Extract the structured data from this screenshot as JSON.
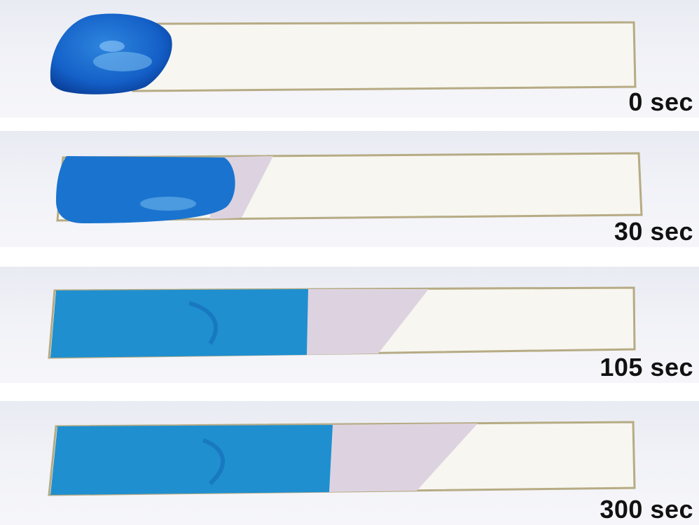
{
  "panels": [
    {
      "id": "p0",
      "label": "0 sec"
    },
    {
      "id": "p1",
      "label": "30 sec"
    },
    {
      "id": "p2",
      "label": "105 sec"
    },
    {
      "id": "p3",
      "label": "300 sec"
    }
  ],
  "colors": {
    "background": "#ffffff",
    "strip": "#f7f6f0",
    "strip_edge": "#b6ab84",
    "dye_blue": "#1f8fd0",
    "dye_blue_dark": "#0f5fb0",
    "wet_front_pink": "#ddd3e0",
    "label_text": "#111111"
  }
}
